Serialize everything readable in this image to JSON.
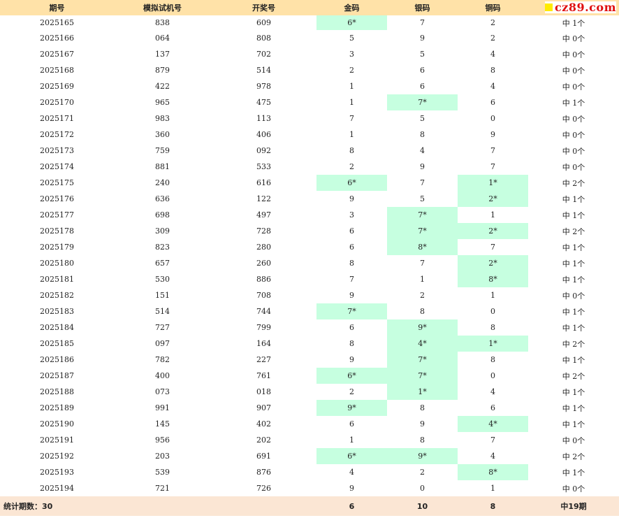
{
  "headers": [
    "期号",
    "模拟试机号",
    "开奖号",
    "金码",
    "银码",
    "铜码"
  ],
  "logo": {
    "text": "cz89.com",
    "colors": {
      "text": "#e01010",
      "square": "#ffeb00"
    }
  },
  "colors": {
    "header_bg": "#ffe2a8",
    "hit_bg": "#c6ffe0",
    "footer_bg": "#fbe6d4"
  },
  "rows": [
    {
      "issue": "2025165",
      "sim": "838",
      "draw": "609",
      "gold": "6*",
      "silver": "7",
      "bronze": "2",
      "result": "中 1个"
    },
    {
      "issue": "2025166",
      "sim": "064",
      "draw": "808",
      "gold": "5",
      "silver": "9",
      "bronze": "2",
      "result": "中 0个"
    },
    {
      "issue": "2025167",
      "sim": "137",
      "draw": "702",
      "gold": "3",
      "silver": "5",
      "bronze": "4",
      "result": "中 0个"
    },
    {
      "issue": "2025168",
      "sim": "879",
      "draw": "514",
      "gold": "2",
      "silver": "6",
      "bronze": "8",
      "result": "中 0个"
    },
    {
      "issue": "2025169",
      "sim": "422",
      "draw": "978",
      "gold": "1",
      "silver": "6",
      "bronze": "4",
      "result": "中 0个"
    },
    {
      "issue": "2025170",
      "sim": "965",
      "draw": "475",
      "gold": "1",
      "silver": "7*",
      "bronze": "6",
      "result": "中 1个"
    },
    {
      "issue": "2025171",
      "sim": "983",
      "draw": "113",
      "gold": "7",
      "silver": "5",
      "bronze": "0",
      "result": "中 0个"
    },
    {
      "issue": "2025172",
      "sim": "360",
      "draw": "406",
      "gold": "1",
      "silver": "8",
      "bronze": "9",
      "result": "中 0个"
    },
    {
      "issue": "2025173",
      "sim": "759",
      "draw": "092",
      "gold": "8",
      "silver": "4",
      "bronze": "7",
      "result": "中 0个"
    },
    {
      "issue": "2025174",
      "sim": "881",
      "draw": "533",
      "gold": "2",
      "silver": "9",
      "bronze": "7",
      "result": "中 0个"
    },
    {
      "issue": "2025175",
      "sim": "240",
      "draw": "616",
      "gold": "6*",
      "silver": "7",
      "bronze": "1*",
      "result": "中 2个"
    },
    {
      "issue": "2025176",
      "sim": "636",
      "draw": "122",
      "gold": "9",
      "silver": "5",
      "bronze": "2*",
      "result": "中 1个"
    },
    {
      "issue": "2025177",
      "sim": "698",
      "draw": "497",
      "gold": "3",
      "silver": "7*",
      "bronze": "1",
      "result": "中 1个"
    },
    {
      "issue": "2025178",
      "sim": "309",
      "draw": "728",
      "gold": "6",
      "silver": "7*",
      "bronze": "2*",
      "result": "中 2个"
    },
    {
      "issue": "2025179",
      "sim": "823",
      "draw": "280",
      "gold": "6",
      "silver": "8*",
      "bronze": "7",
      "result": "中 1个"
    },
    {
      "issue": "2025180",
      "sim": "657",
      "draw": "260",
      "gold": "8",
      "silver": "7",
      "bronze": "2*",
      "result": "中 1个"
    },
    {
      "issue": "2025181",
      "sim": "530",
      "draw": "886",
      "gold": "7",
      "silver": "1",
      "bronze": "8*",
      "result": "中 1个"
    },
    {
      "issue": "2025182",
      "sim": "151",
      "draw": "708",
      "gold": "9",
      "silver": "2",
      "bronze": "1",
      "result": "中 0个"
    },
    {
      "issue": "2025183",
      "sim": "514",
      "draw": "744",
      "gold": "7*",
      "silver": "8",
      "bronze": "0",
      "result": "中 1个"
    },
    {
      "issue": "2025184",
      "sim": "727",
      "draw": "799",
      "gold": "6",
      "silver": "9*",
      "bronze": "8",
      "result": "中 1个"
    },
    {
      "issue": "2025185",
      "sim": "097",
      "draw": "164",
      "gold": "8",
      "silver": "4*",
      "bronze": "1*",
      "result": "中 2个"
    },
    {
      "issue": "2025186",
      "sim": "782",
      "draw": "227",
      "gold": "9",
      "silver": "7*",
      "bronze": "8",
      "result": "中 1个"
    },
    {
      "issue": "2025187",
      "sim": "400",
      "draw": "761",
      "gold": "6*",
      "silver": "7*",
      "bronze": "0",
      "result": "中 2个"
    },
    {
      "issue": "2025188",
      "sim": "073",
      "draw": "018",
      "gold": "2",
      "silver": "1*",
      "bronze": "4",
      "result": "中 1个"
    },
    {
      "issue": "2025189",
      "sim": "991",
      "draw": "907",
      "gold": "9*",
      "silver": "8",
      "bronze": "6",
      "result": "中 1个"
    },
    {
      "issue": "2025190",
      "sim": "145",
      "draw": "402",
      "gold": "6",
      "silver": "9",
      "bronze": "4*",
      "result": "中 1个"
    },
    {
      "issue": "2025191",
      "sim": "956",
      "draw": "202",
      "gold": "1",
      "silver": "8",
      "bronze": "7",
      "result": "中 0个"
    },
    {
      "issue": "2025192",
      "sim": "203",
      "draw": "691",
      "gold": "6*",
      "silver": "9*",
      "bronze": "4",
      "result": "中 2个"
    },
    {
      "issue": "2025193",
      "sim": "539",
      "draw": "876",
      "gold": "4",
      "silver": "2",
      "bronze": "8*",
      "result": "中 1个"
    },
    {
      "issue": "2025194",
      "sim": "721",
      "draw": "726",
      "gold": "9",
      "silver": "0",
      "bronze": "1",
      "result": "中 0个"
    }
  ],
  "footer": {
    "label": "统计期数：30",
    "gold": "6",
    "silver": "10",
    "bronze": "8",
    "result": "中19期"
  }
}
